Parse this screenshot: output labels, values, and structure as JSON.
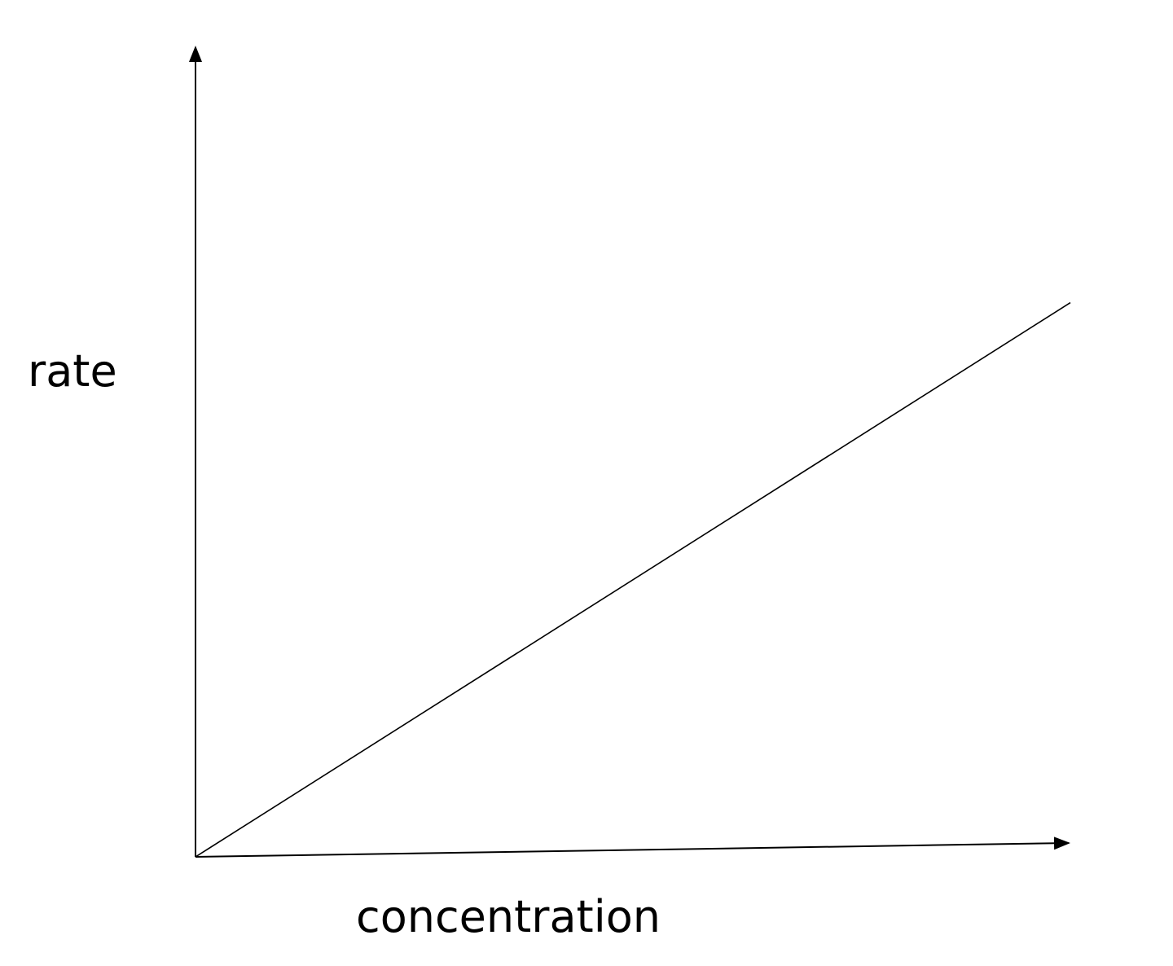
{
  "chart_data": {
    "type": "line",
    "title": "",
    "xlabel": "concentration",
    "ylabel": "rate",
    "xlim": [
      0,
      1
    ],
    "ylim": [
      0,
      1
    ],
    "grid": false,
    "legend": "none",
    "ticks": "none",
    "series": [
      {
        "x": [
          0,
          1
        ],
        "y": [
          0,
          0.7
        ]
      }
    ]
  },
  "colors": {
    "background": "#ffffff",
    "axes": "#000000",
    "line": "#000000"
  }
}
